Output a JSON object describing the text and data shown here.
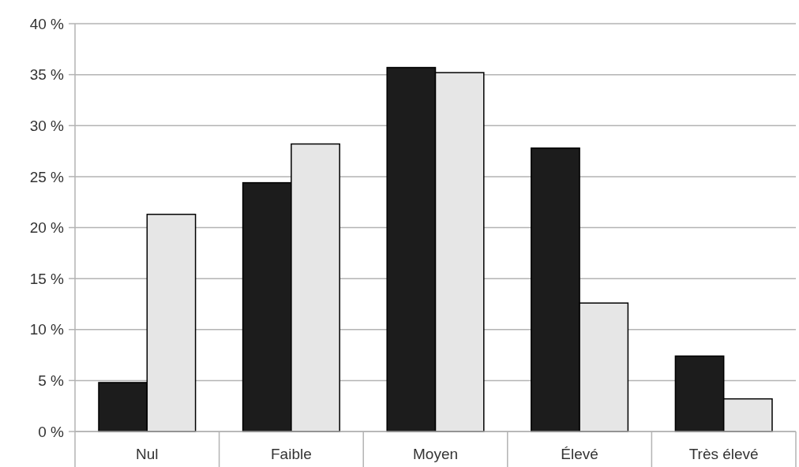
{
  "chart_data": {
    "type": "bar",
    "categories": [
      "Nul",
      "Faible",
      "Moyen",
      "Élevé",
      "Très élevé"
    ],
    "series": [
      {
        "color": "#1c1c1c",
        "values": [
          4.8,
          24.4,
          35.7,
          27.8,
          7.4
        ]
      },
      {
        "color": "#e6e6e6",
        "values": [
          21.3,
          28.2,
          35.2,
          12.6,
          3.2
        ]
      }
    ],
    "ylim": [
      0,
      40
    ],
    "yticks": [
      {
        "value": 0,
        "label": "0 %"
      },
      {
        "value": 5,
        "label": "5 %"
      },
      {
        "value": 10,
        "label": "10 %"
      },
      {
        "value": 15,
        "label": "15 %"
      },
      {
        "value": 20,
        "label": "20 %"
      },
      {
        "value": 25,
        "label": "25 %"
      },
      {
        "value": 30,
        "label": "30 %"
      },
      {
        "value": 35,
        "label": "35 %"
      },
      {
        "value": 40,
        "label": "40 %"
      }
    ],
    "grid": "y"
  }
}
